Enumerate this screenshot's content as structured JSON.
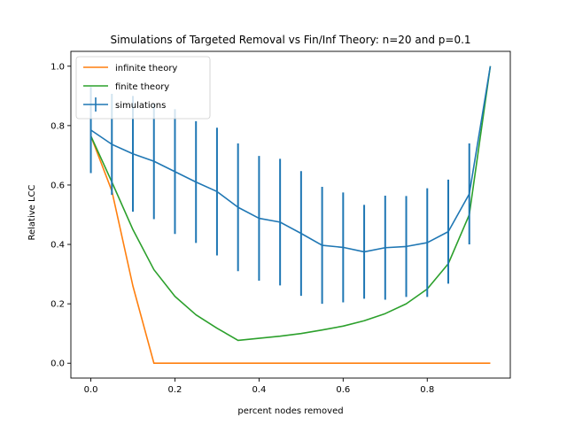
{
  "chart_data": {
    "type": "line",
    "title": "Simulations of Targeted Removal vs Fin/Inf Theory: n=20 and p=0.1",
    "xlabel": "percent nodes removed",
    "ylabel": "Relative LCC",
    "xlim": [
      -0.0475,
      0.9975
    ],
    "ylim": [
      -0.05,
      1.05
    ],
    "xticks": [
      0.0,
      0.2,
      0.4,
      0.6,
      0.8
    ],
    "xtick_labels": [
      "0.0",
      "0.2",
      "0.4",
      "0.6",
      "0.8"
    ],
    "yticks": [
      0.0,
      0.2,
      0.4,
      0.6,
      0.8,
      1.0
    ],
    "ytick_labels": [
      "0.0",
      "0.2",
      "0.4",
      "0.6",
      "0.8",
      "1.0"
    ],
    "grid": false,
    "legend_position": "top-left",
    "x": [
      0.0,
      0.05,
      0.1,
      0.15,
      0.2,
      0.25,
      0.3,
      0.35,
      0.4,
      0.45,
      0.5,
      0.55,
      0.6,
      0.65,
      0.7,
      0.75,
      0.8,
      0.85,
      0.9,
      0.95
    ],
    "series": [
      {
        "name": "infinite theory",
        "color": "#ff7f0e",
        "values": [
          0.765,
          0.58,
          0.26,
          0.0,
          0.0,
          0.0,
          0.0,
          0.0,
          0.0,
          0.0,
          0.0,
          0.0,
          0.0,
          0.0,
          0.0,
          0.0,
          0.0,
          0.0,
          0.0,
          0.0
        ]
      },
      {
        "name": "finite theory",
        "color": "#2ca02c",
        "values": [
          0.765,
          0.61,
          0.45,
          0.315,
          0.225,
          0.163,
          0.118,
          0.077,
          0.084,
          0.091,
          0.1,
          0.112,
          0.125,
          0.143,
          0.167,
          0.2,
          0.25,
          0.335,
          0.5,
          1.0
        ]
      },
      {
        "name": "simulations",
        "color": "#1f77b4",
        "values": [
          0.785,
          0.737,
          0.705,
          0.68,
          0.645,
          0.61,
          0.578,
          0.525,
          0.488,
          0.475,
          0.437,
          0.397,
          0.39,
          0.375,
          0.389,
          0.393,
          0.406,
          0.443,
          0.57,
          1.0
        ],
        "errors": [
          0.145,
          0.17,
          0.195,
          0.195,
          0.21,
          0.205,
          0.215,
          0.215,
          0.21,
          0.213,
          0.21,
          0.197,
          0.185,
          0.158,
          0.175,
          0.17,
          0.183,
          0.175,
          0.17,
          0.0
        ]
      }
    ]
  }
}
